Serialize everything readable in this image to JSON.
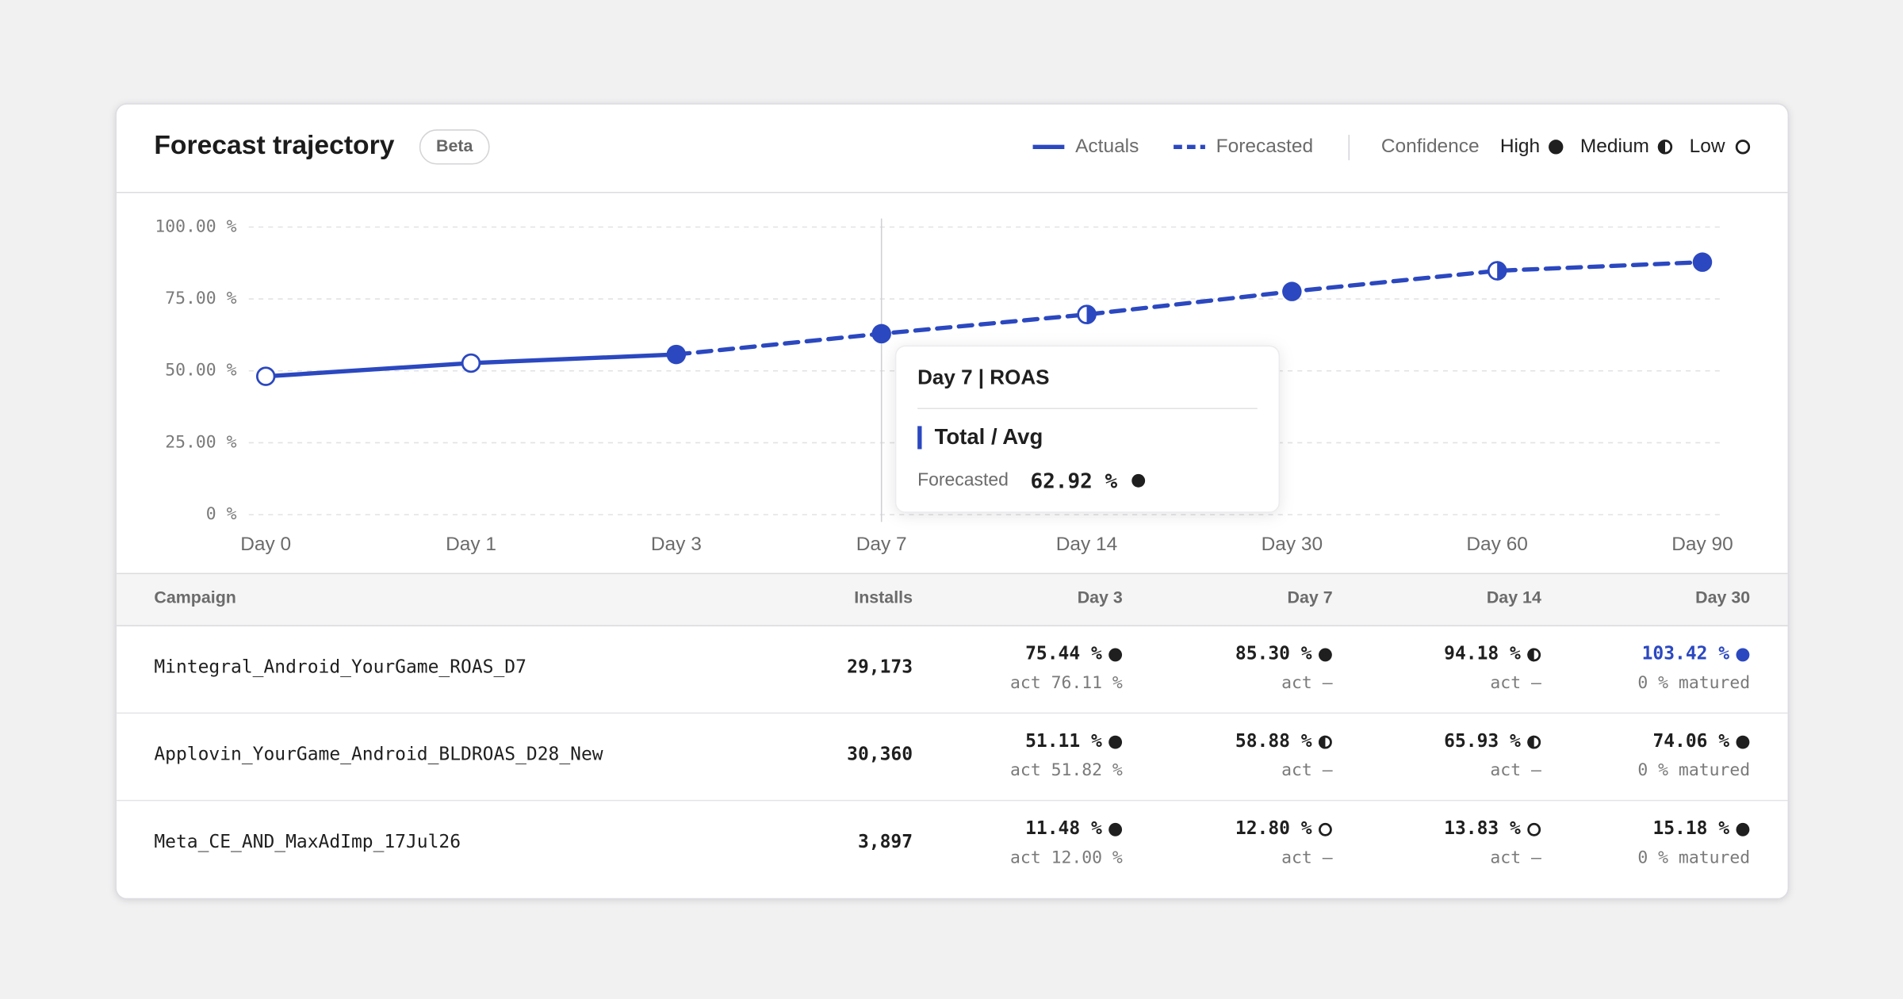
{
  "header": {
    "title": "Forecast trajectory",
    "badge": "Beta"
  },
  "chart_data": {
    "type": "line",
    "categories": [
      "Day 0",
      "Day 1",
      "Day 3",
      "Day 7",
      "Day 14",
      "Day 30",
      "Day 60",
      "Day 90"
    ],
    "series": [
      {
        "name": "Actuals",
        "color": "#2b48c0",
        "line_style": "solid",
        "values": [
          48.1,
          52.7,
          55.7,
          null,
          null,
          null,
          null,
          null
        ]
      },
      {
        "name": "Forecasted",
        "color": "#2b48c0",
        "line_style": "dashed",
        "values": [
          null,
          null,
          55.7,
          62.92,
          69.6,
          77.6,
          84.8,
          87.8
        ]
      }
    ],
    "confidence": [
      "Low",
      "Low",
      "High",
      "High",
      "Medium",
      "High",
      "Medium",
      "High"
    ],
    "confidence_label": "Confidence",
    "confidence_levels": [
      "High",
      "Medium",
      "Low"
    ],
    "ylim": [
      0,
      100
    ],
    "yticks": [
      {
        "value": 0,
        "label": "0 %"
      },
      {
        "value": 25,
        "label": "25.00 %"
      },
      {
        "value": 50,
        "label": "50.00 %"
      },
      {
        "value": 75,
        "label": "75.00 %"
      },
      {
        "value": 100,
        "label": "100.00 %"
      }
    ],
    "grid": true,
    "tooltip": {
      "title": "Day 7 | ROAS",
      "heading": "Total / Avg",
      "label": "Forecasted",
      "value_label": "62.92 %",
      "confidence": "High"
    }
  },
  "table": {
    "columns": [
      "Campaign",
      "Installs",
      "Day 3",
      "Day 7",
      "Day 14",
      "Day 30"
    ],
    "rows": [
      {
        "campaign": "Mintegral_Android_YourGame_ROAS_D7",
        "installs": "29,173",
        "cells": [
          {
            "value": "75.44 %",
            "sub": "act 76.11 %",
            "confidence": "High"
          },
          {
            "value": "85.30 %",
            "sub": "act —",
            "confidence": "High"
          },
          {
            "value": "94.18 %",
            "sub": "act —",
            "confidence": "Medium"
          },
          {
            "value": "103.42 %",
            "sub": "0 % matured",
            "confidence": "High",
            "color": "#2b48c0"
          }
        ]
      },
      {
        "campaign": "Applovin_YourGame_Android_BLDROAS_D28_New",
        "installs": "30,360",
        "cells": [
          {
            "value": "51.11 %",
            "sub": "act 51.82 %",
            "confidence": "High"
          },
          {
            "value": "58.88 %",
            "sub": "act —",
            "confidence": "Medium"
          },
          {
            "value": "65.93 %",
            "sub": "act —",
            "confidence": "Medium"
          },
          {
            "value": "74.06 %",
            "sub": "0 % matured",
            "confidence": "High"
          }
        ]
      },
      {
        "campaign": "Meta_CE_AND_MaxAdImp_17Jul26",
        "installs": "3,897",
        "cells": [
          {
            "value": "11.48 %",
            "sub": "act 12.00 %",
            "confidence": "High"
          },
          {
            "value": "12.80 %",
            "sub": "act —",
            "confidence": "Low"
          },
          {
            "value": "13.83 %",
            "sub": "act —",
            "confidence": "Low"
          },
          {
            "value": "15.18 %",
            "sub": "0 % matured",
            "confidence": "High"
          }
        ]
      }
    ]
  }
}
